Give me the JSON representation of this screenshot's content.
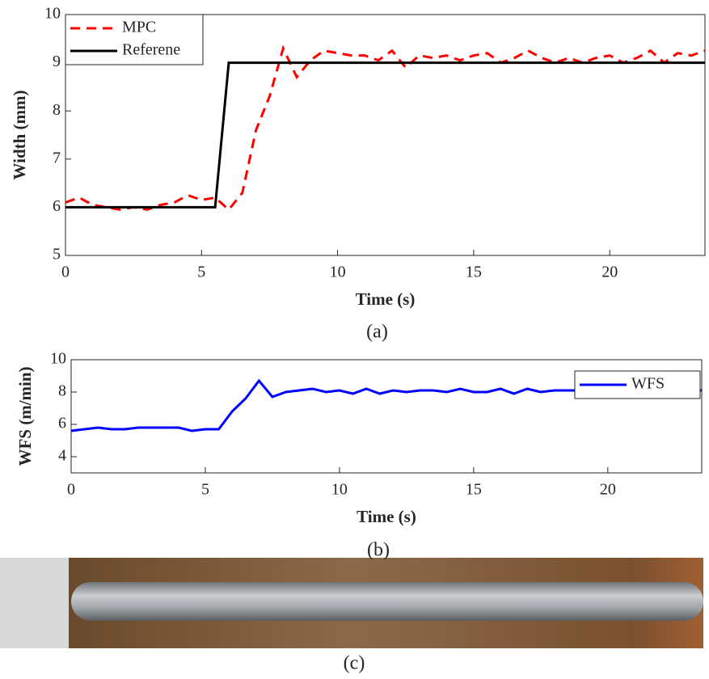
{
  "chart_data": [
    {
      "type": "line",
      "caption": "(a)",
      "xlabel": "Time (s)",
      "ylabel": "Width (mm)",
      "xlim": [
        0,
        23.5
      ],
      "ylim": [
        5,
        10
      ],
      "xticks": [
        0,
        5,
        10,
        15,
        20
      ],
      "yticks": [
        5,
        6,
        7,
        8,
        9,
        10
      ],
      "legend": "upper left",
      "series": [
        {
          "name": "MPC",
          "color": "#ff0000",
          "dash": true,
          "x": [
            0,
            0.5,
            1,
            1.5,
            2,
            2.5,
            3,
            3.5,
            4,
            4.5,
            5,
            5.5,
            6,
            6.5,
            7,
            7.5,
            8,
            8.5,
            9,
            9.5,
            10,
            10.5,
            11,
            11.5,
            12,
            12.5,
            13,
            13.5,
            14,
            14.5,
            15,
            15.5,
            16,
            16.5,
            17,
            17.5,
            18,
            18.5,
            19,
            19.5,
            20,
            20.5,
            21,
            21.5,
            22,
            22.5,
            23,
            23.5
          ],
          "values": [
            6.1,
            6.2,
            6.05,
            6.0,
            5.95,
            6.0,
            5.95,
            6.05,
            6.1,
            6.25,
            6.15,
            6.2,
            5.95,
            6.3,
            7.6,
            8.3,
            9.3,
            8.7,
            9.05,
            9.25,
            9.2,
            9.15,
            9.15,
            9.05,
            9.25,
            8.9,
            9.15,
            9.1,
            9.15,
            9.05,
            9.15,
            9.2,
            9.0,
            9.1,
            9.25,
            9.1,
            9.0,
            9.1,
            9.0,
            9.1,
            9.15,
            9.0,
            9.1,
            9.25,
            9.0,
            9.2,
            9.15,
            9.25
          ]
        },
        {
          "name": "Referene",
          "color": "#000000",
          "dash": false,
          "x": [
            0,
            5.5,
            6,
            23.5
          ],
          "values": [
            6,
            6,
            9,
            9
          ]
        }
      ]
    },
    {
      "type": "line",
      "caption": "(b)",
      "xlabel": "Time (s)",
      "ylabel": "WFS (m/min)",
      "xlim": [
        0,
        23.5
      ],
      "ylim": [
        3,
        10
      ],
      "xticks": [
        0,
        5,
        10,
        15,
        20
      ],
      "yticks": [
        4,
        6,
        8,
        10
      ],
      "legend": "upper right",
      "series": [
        {
          "name": "WFS",
          "color": "#0000ff",
          "dash": false,
          "x": [
            0,
            1,
            1.5,
            2,
            2.5,
            4,
            4.5,
            5,
            5.5,
            6,
            6.5,
            7,
            7.5,
            8,
            9,
            9.5,
            10,
            10.5,
            11,
            11.5,
            12,
            12.5,
            13,
            13.5,
            14,
            14.5,
            15,
            15.5,
            16,
            16.5,
            17,
            17.5,
            18,
            23.5
          ],
          "values": [
            5.6,
            5.8,
            5.7,
            5.7,
            5.8,
            5.8,
            5.6,
            5.7,
            5.7,
            6.8,
            7.6,
            8.7,
            7.7,
            8.0,
            8.2,
            8.0,
            8.1,
            7.9,
            8.2,
            7.9,
            8.1,
            8.0,
            8.1,
            8.1,
            8.0,
            8.2,
            8.0,
            8.0,
            8.2,
            7.9,
            8.2,
            8.0,
            8.1,
            8.1
          ]
        }
      ]
    }
  ],
  "photo": {
    "caption": "(c)"
  }
}
